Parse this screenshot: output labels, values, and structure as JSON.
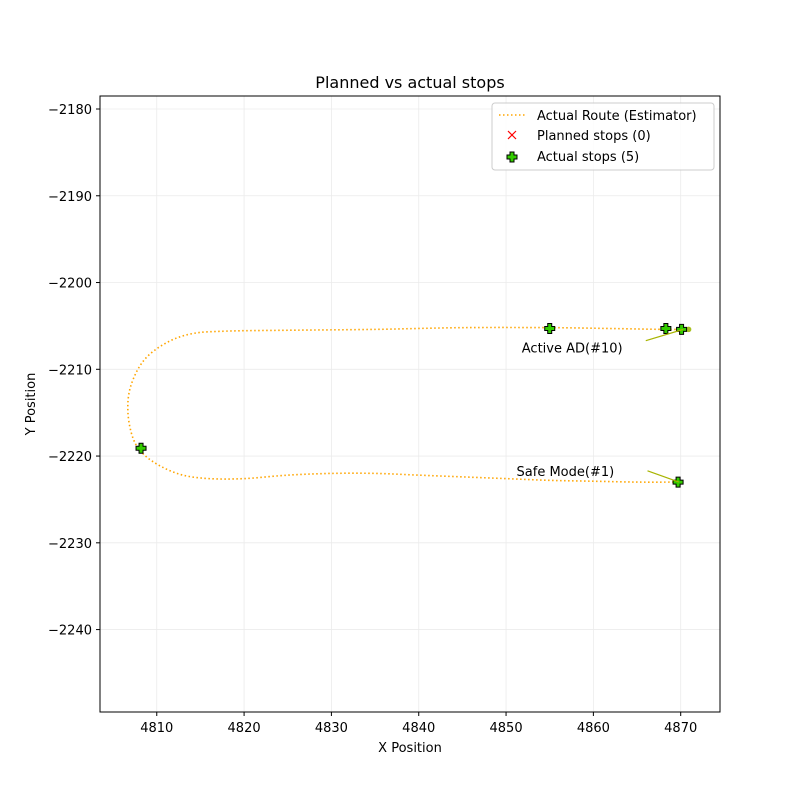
{
  "chart_data": {
    "type": "scatter",
    "title": "Planned vs actual stops",
    "xlabel": "X Position",
    "ylabel": "Y Position",
    "xlim": [
      4803.5,
      4874.5
    ],
    "ylim": [
      -2249.5,
      -2178.5
    ],
    "xticks": [
      4810,
      4820,
      4830,
      4840,
      4850,
      4860,
      4870
    ],
    "yticks": [
      -2180,
      -2190,
      -2200,
      -2210,
      -2220,
      -2230,
      -2240
    ],
    "xtick_labels": [
      "4810",
      "4820",
      "4830",
      "4840",
      "4850",
      "4860",
      "4870"
    ],
    "ytick_labels": [
      "−2180",
      "−2190",
      "−2200",
      "−2210",
      "−2220",
      "−2230",
      "−2240"
    ],
    "grid": true,
    "legend_position": "top-right",
    "series": [
      {
        "name": "Actual Route (Estimator)",
        "style": "dotted-line",
        "color": "#ffa500",
        "points": [
          [
            4870.8,
            -2205.4
          ],
          [
            4868.0,
            -2205.4
          ],
          [
            4862.0,
            -2205.3
          ],
          [
            4855.0,
            -2205.2
          ],
          [
            4845.0,
            -2205.2
          ],
          [
            4835.0,
            -2205.4
          ],
          [
            4825.0,
            -2205.5
          ],
          [
            4818.0,
            -2205.6
          ],
          [
            4814.0,
            -2205.9
          ],
          [
            4811.0,
            -2207.0
          ],
          [
            4808.5,
            -2209.0
          ],
          [
            4807.0,
            -2212.0
          ],
          [
            4806.7,
            -2215.0
          ],
          [
            4807.3,
            -2218.0
          ],
          [
            4808.5,
            -2219.8
          ],
          [
            4810.5,
            -2221.2
          ],
          [
            4813.0,
            -2222.2
          ],
          [
            4816.0,
            -2222.6
          ],
          [
            4820.0,
            -2222.6
          ],
          [
            4825.0,
            -2222.2
          ],
          [
            4830.0,
            -2222.0
          ],
          [
            4835.0,
            -2222.0
          ],
          [
            4840.0,
            -2222.2
          ],
          [
            4845.0,
            -2222.4
          ],
          [
            4850.0,
            -2222.6
          ],
          [
            4855.0,
            -2222.8
          ],
          [
            4860.0,
            -2222.9
          ],
          [
            4865.0,
            -2223.0
          ],
          [
            4869.7,
            -2223.0
          ]
        ]
      },
      {
        "name": "Planned stops (0)",
        "style": "x-marker",
        "color": "#ff0000",
        "points": []
      },
      {
        "name": "Actual stops (5)",
        "style": "plus-marker",
        "color": "#33cc00",
        "points": [
          [
            4808.2,
            -2219.1
          ],
          [
            4855.0,
            -2205.3
          ],
          [
            4868.3,
            -2205.3
          ],
          [
            4870.1,
            -2205.4
          ],
          [
            4869.7,
            -2223.0
          ]
        ]
      }
    ],
    "route_end_marker": {
      "point": [
        4870.9,
        -2205.4
      ],
      "color": "#a8c020"
    },
    "annotations": [
      {
        "text": "Active AD(#10)",
        "text_at": [
          4851.8,
          -2207.5
        ],
        "arrow_from": [
          4866.0,
          -2206.7
        ],
        "arrow_to": [
          4870.3,
          -2205.4
        ],
        "color": "#a8b400"
      },
      {
        "text": "Safe Mode(#1)",
        "text_at": [
          4851.2,
          -2221.7
        ],
        "arrow_from": [
          4866.2,
          -2221.7
        ],
        "arrow_to": [
          4869.8,
          -2223.0
        ],
        "color": "#a8b400"
      }
    ]
  }
}
